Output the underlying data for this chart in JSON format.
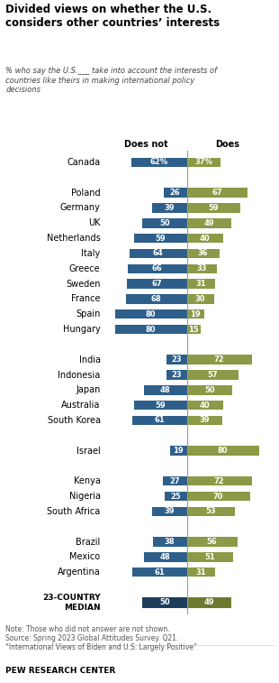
{
  "title": "Divided views on whether the U.S.\nconsiders other countries’ interests",
  "subtitle": "% who say the U.S.___ take into account the interests of\ncountries like theirs in making international policy\ndecisions",
  "col_does_not": "Does not",
  "col_does": "Does",
  "countries": [
    "Canada",
    null,
    "Poland",
    "Germany",
    "UK",
    "Netherlands",
    "Italy",
    "Greece",
    "Sweden",
    "France",
    "Spain",
    "Hungary",
    null,
    "India",
    "Indonesia",
    "Japan",
    "Australia",
    "South Korea",
    null,
    "Israel",
    null,
    "Kenya",
    "Nigeria",
    "South Africa",
    null,
    "Brazil",
    "Mexico",
    "Argentina",
    null,
    "23-COUNTRY\nMEDIAN"
  ],
  "does_not": [
    62,
    null,
    26,
    39,
    50,
    59,
    64,
    66,
    67,
    68,
    80,
    80,
    null,
    23,
    23,
    48,
    59,
    61,
    null,
    19,
    null,
    27,
    25,
    39,
    null,
    38,
    48,
    61,
    null,
    50
  ],
  "does": [
    37,
    null,
    67,
    59,
    49,
    40,
    36,
    33,
    31,
    30,
    19,
    15,
    null,
    72,
    57,
    50,
    40,
    39,
    null,
    80,
    null,
    72,
    70,
    53,
    null,
    56,
    51,
    31,
    null,
    49
  ],
  "does_not_labels": [
    "62%",
    null,
    "26",
    "39",
    "50",
    "59",
    "64",
    "66",
    "67",
    "68",
    "80",
    "80",
    null,
    "23",
    "23",
    "48",
    "59",
    "61",
    null,
    "19",
    null,
    "27",
    "25",
    "39",
    null,
    "38",
    "48",
    "61",
    null,
    "50"
  ],
  "does_labels": [
    "37%",
    null,
    "67",
    "59",
    "49",
    "40",
    "36",
    "33",
    "31",
    "30",
    "19",
    "15",
    null,
    "72",
    "57",
    "50",
    "40",
    "39",
    null,
    "80",
    null,
    "72",
    "70",
    "53",
    null,
    "56",
    "51",
    "31",
    null,
    "49"
  ],
  "color_does_not": "#2E5F8A",
  "color_does": "#8B9A46",
  "color_median_does_not": "#1D3D5C",
  "color_median_does": "#6B7A2E",
  "bar_height": 0.62,
  "median_bar_height": 0.68,
  "note": "Note: Those who did not answer are not shown.\nSource: Spring 2023 Global Attitudes Survey. Q21.\n“International Views of Biden and U.S. Largely Positive”",
  "footer": "PEW RESEARCH CENTER"
}
